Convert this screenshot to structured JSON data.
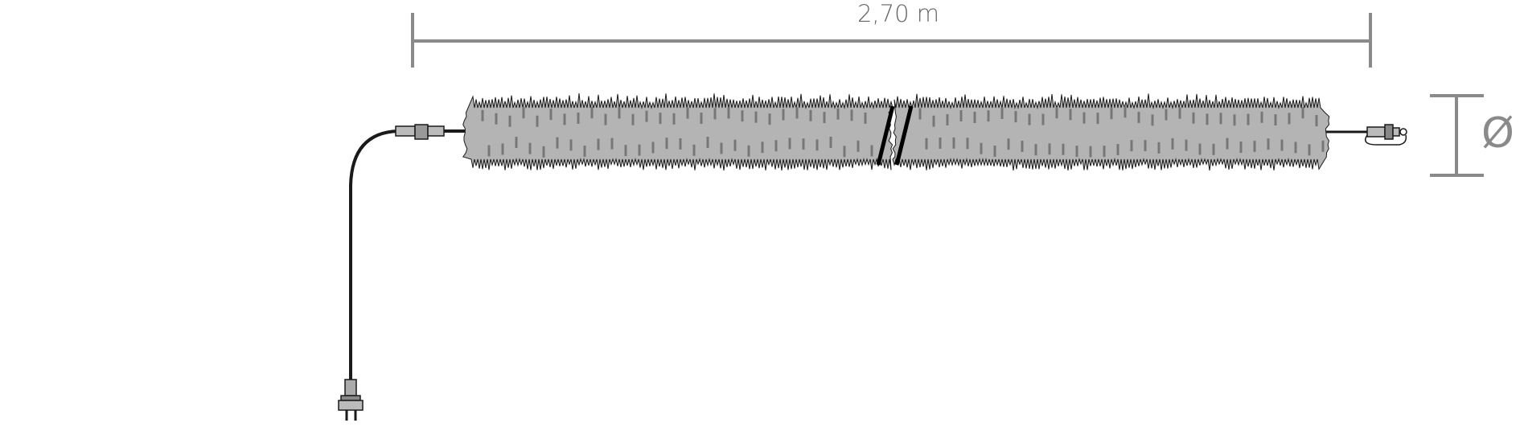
{
  "dimensions": {
    "length_label": "2,70 m",
    "diameter_symbol": "Ø"
  },
  "colors": {
    "garland_fill": "#b4b4b4",
    "outline": "#1a1a1a",
    "dimension_line": "#8a8a8a",
    "cable": "#1a1a1a"
  },
  "icons": [
    "power-plug-icon",
    "connector-icon",
    "end-cap-icon",
    "diameter-icon"
  ]
}
